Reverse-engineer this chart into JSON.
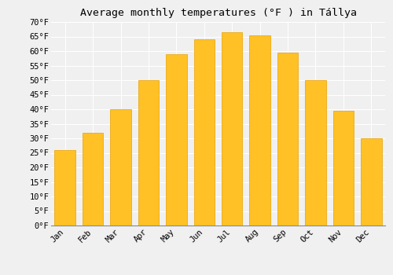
{
  "title": "Average monthly temperatures (°F ) in Tállya",
  "months": [
    "Jan",
    "Feb",
    "Mar",
    "Apr",
    "May",
    "Jun",
    "Jul",
    "Aug",
    "Sep",
    "Oct",
    "Nov",
    "Dec"
  ],
  "values": [
    26,
    32,
    40,
    50,
    59,
    64,
    66.5,
    65.5,
    59.5,
    50,
    39.5,
    30
  ],
  "bar_color_top": "#FFC125",
  "bar_color_bottom": "#FFB000",
  "bar_edge_color": "#E8A000",
  "ylim": [
    0,
    70
  ],
  "yticks": [
    0,
    5,
    10,
    15,
    20,
    25,
    30,
    35,
    40,
    45,
    50,
    55,
    60,
    65,
    70
  ],
  "background_color": "#f0f0f0",
  "grid_color": "#ffffff",
  "title_fontsize": 9.5,
  "tick_fontsize": 7.5
}
